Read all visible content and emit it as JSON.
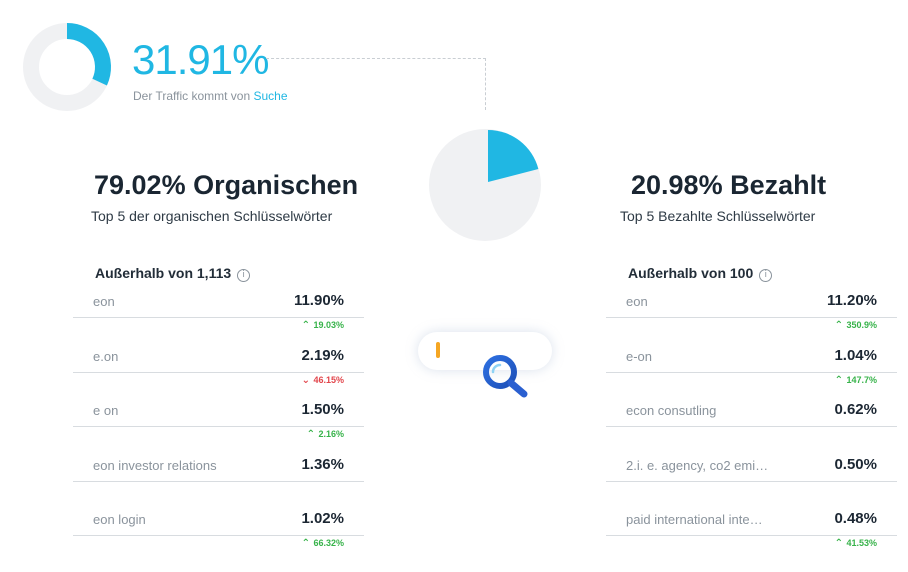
{
  "traffic": {
    "percent": "31.91%",
    "percent_value": 31.91,
    "subtitle_prefix": "Der Traffic kommt von",
    "subtitle_highlight": "Suche"
  },
  "pie": {
    "paid_share": 20.98,
    "organic_share": 79.02
  },
  "organic": {
    "title": "79.02% Organischen",
    "subtitle": "Top 5 der organischen Schlüsselwörter",
    "beyond_label": "Außerhalb von 1,113",
    "keywords": [
      {
        "name": "eon",
        "pct": "11.90%",
        "change": "19.03%",
        "dir": "up"
      },
      {
        "name": "e.on",
        "pct": "2.19%",
        "change": "46.15%",
        "dir": "down"
      },
      {
        "name": "e on",
        "pct": "1.50%",
        "change": "2.16%",
        "dir": "up"
      },
      {
        "name": "eon investor relations",
        "pct": "1.36%",
        "change": "",
        "dir": ""
      },
      {
        "name": "eon login",
        "pct": "1.02%",
        "change": "66.32%",
        "dir": "up"
      }
    ]
  },
  "paid": {
    "title": "20.98% Bezahlt",
    "subtitle": "Top 5 Bezahlte Schlüsselwörter",
    "beyond_label": "Außerhalb von 100",
    "keywords": [
      {
        "name": "eon",
        "pct": "11.20%",
        "change": "350.9%",
        "dir": "up"
      },
      {
        "name": "e-on",
        "pct": "1.04%",
        "change": "147.7%",
        "dir": "up"
      },
      {
        "name": "econ consutling",
        "pct": "0.62%",
        "change": "",
        "dir": ""
      },
      {
        "name": "2.i. e. agency, co2 emi…",
        "pct": "0.50%",
        "change": "",
        "dir": ""
      },
      {
        "name": "paid international inte…",
        "pct": "0.48%",
        "change": "41.53%",
        "dir": "up"
      }
    ]
  },
  "colors": {
    "accent": "#20b7e3",
    "track": "#f0f1f3",
    "up": "#37b34a",
    "down": "#e2454b"
  },
  "icons": {
    "info": "info-icon",
    "search": "magnifier-icon"
  }
}
